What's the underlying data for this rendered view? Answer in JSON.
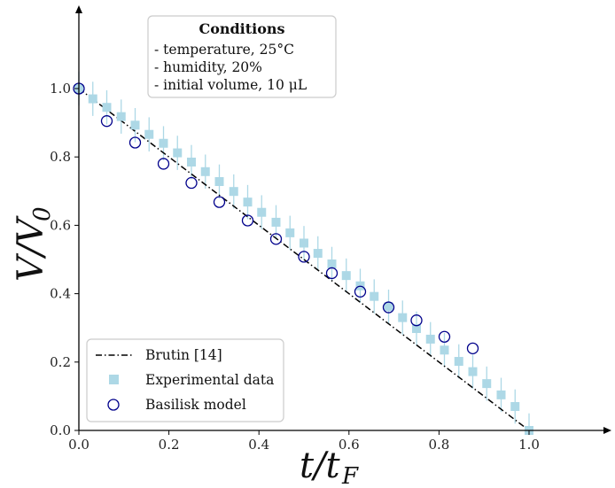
{
  "chart_data": {
    "type": "scatter",
    "xlabel": "t/t_F",
    "ylabel": "V/V_0",
    "xlim": [
      0.0,
      1.17
    ],
    "ylim": [
      0.0,
      1.17
    ],
    "x_ticks": [
      "0.0",
      "0.2",
      "0.4",
      "0.6",
      "0.8",
      "1.0"
    ],
    "y_ticks": [
      "0.0",
      "0.2",
      "0.4",
      "0.6",
      "0.8",
      "1.0"
    ],
    "annotation": {
      "title": "Conditions",
      "lines": [
        "- temperature, 25°C",
        "- humidity, 20%",
        "- initial volume, 10 μL"
      ]
    },
    "legend_position": "bottom-left",
    "series": [
      {
        "name": "Brutin [14]",
        "style": "dash-dot-line",
        "color": "#000000",
        "x": [
          0.0,
          1.0
        ],
        "y": [
          1.0,
          0.0
        ]
      },
      {
        "name": "Experimental data",
        "style": "square",
        "color": "#add8e6",
        "x": [
          0.0,
          0.031,
          0.062,
          0.094,
          0.125,
          0.156,
          0.188,
          0.219,
          0.25,
          0.281,
          0.312,
          0.344,
          0.375,
          0.406,
          0.438,
          0.469,
          0.5,
          0.531,
          0.562,
          0.594,
          0.625,
          0.656,
          0.688,
          0.719,
          0.75,
          0.781,
          0.812,
          0.844,
          0.875,
          0.906,
          0.938,
          0.969,
          1.0
        ],
        "y": [
          1.0,
          0.97,
          0.945,
          0.918,
          0.893,
          0.866,
          0.84,
          0.812,
          0.785,
          0.757,
          0.728,
          0.699,
          0.668,
          0.638,
          0.609,
          0.578,
          0.548,
          0.518,
          0.487,
          0.453,
          0.423,
          0.392,
          0.362,
          0.33,
          0.298,
          0.267,
          0.235,
          0.202,
          0.172,
          0.137,
          0.104,
          0.07,
          0.0
        ],
        "yerr": 0.05
      },
      {
        "name": "Basilisk model",
        "style": "open-circle",
        "color": "#00008b",
        "x": [
          0.0,
          0.062,
          0.125,
          0.188,
          0.25,
          0.312,
          0.375,
          0.438,
          0.5,
          0.562,
          0.625,
          0.688,
          0.75,
          0.812,
          0.875
        ],
        "y": [
          1.0,
          0.905,
          0.842,
          0.78,
          0.724,
          0.668,
          0.614,
          0.56,
          0.508,
          0.46,
          0.406,
          0.36,
          0.322,
          0.274,
          0.24
        ]
      }
    ]
  }
}
